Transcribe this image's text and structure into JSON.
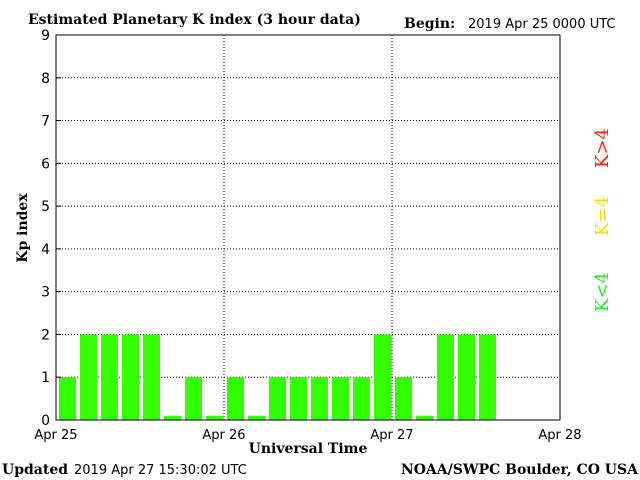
{
  "header": {
    "title": "Estimated Planetary K index (3 hour data)",
    "begin_label": "Begin:",
    "begin_value": "2019 Apr 25 0000 UTC"
  },
  "footer": {
    "updated_label": "Updated",
    "updated_value": "2019 Apr 27 15:30:02 UTC",
    "credit": "NOAA/SWPC Boulder, CO USA"
  },
  "legend": [
    {
      "label": "K>4",
      "color": "#ff2200"
    },
    {
      "label": "K=4",
      "color": "#ffd700"
    },
    {
      "label": "K<4",
      "color": "#22ee22"
    }
  ],
  "chart_data": {
    "type": "bar",
    "title": "Estimated Planetary K index (3 hour data)",
    "xlabel": "Universal Time",
    "ylabel": "Kp index",
    "ylim": [
      0,
      9
    ],
    "yticks": [
      "0",
      "1",
      "2",
      "3",
      "4",
      "5",
      "6",
      "7",
      "8",
      "9"
    ],
    "xticks": [
      "Apr 25",
      "Apr 26",
      "Apr 27",
      "Apr 28"
    ],
    "grid": true,
    "bar_color": "#33ff00",
    "series": [
      {
        "values": [
          1,
          2,
          2,
          2,
          2,
          0,
          1,
          0,
          1,
          0,
          1,
          1,
          1,
          1,
          1,
          2,
          1,
          0,
          2,
          2,
          2
        ]
      }
    ]
  }
}
